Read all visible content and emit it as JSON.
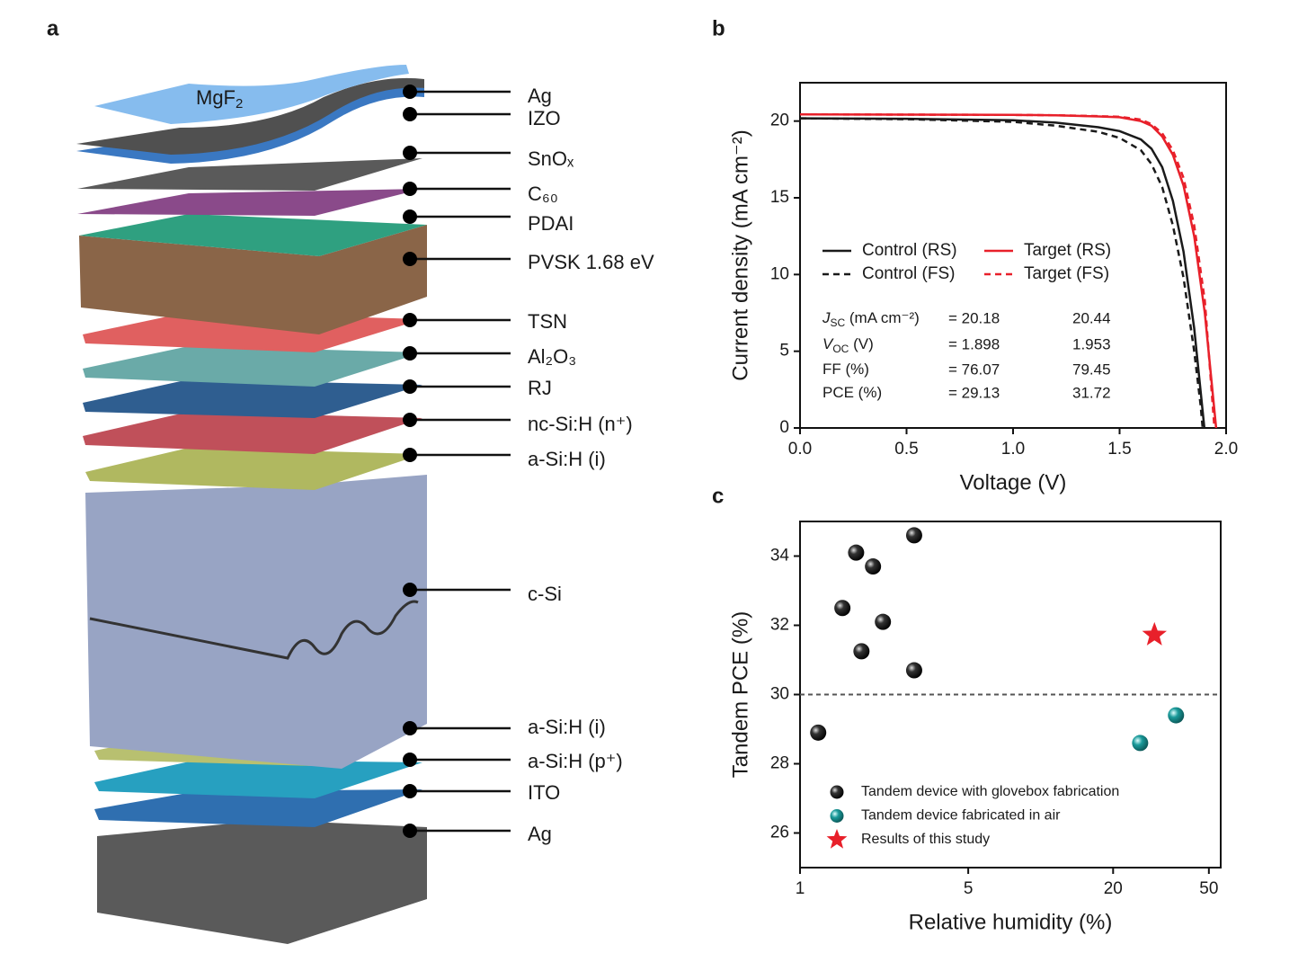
{
  "panel_labels": [
    "a",
    "b",
    "c"
  ],
  "diagram": {
    "top_sheet_label": {
      "main": "MgF",
      "sub": "2"
    },
    "layers": [
      {
        "label": "Ag"
      },
      {
        "label": "IZO"
      },
      {
        "label": "SnOₓ"
      },
      {
        "label": "C₆₀"
      },
      {
        "label": "PDAI"
      },
      {
        "label": "PVSK 1.68 eV"
      },
      {
        "label": "TSN",
        "color": "#e8202a"
      },
      {
        "label": "Al₂O₃"
      },
      {
        "label": "RJ"
      },
      {
        "label": "nc-Si:H (n⁺)"
      },
      {
        "label": "a-Si:H (i)"
      },
      {
        "label": "c-Si"
      },
      {
        "label": "a-Si:H (i)"
      },
      {
        "label": "a-Si:H (p⁺)"
      },
      {
        "label": "ITO"
      },
      {
        "label": "Ag"
      }
    ]
  },
  "chart_data": [
    {
      "type": "line",
      "xlabel": "Voltage (V)",
      "ylabel": "Current density (mA cm⁻²)",
      "xlim": [
        0,
        2
      ],
      "ylim": [
        0,
        22.5
      ],
      "xticks": [
        {
          "value": 0,
          "label": "0.0"
        },
        0.5,
        {
          "value": 1,
          "label": "1.0"
        },
        1.5,
        {
          "value": 2,
          "label": "2.0"
        }
      ],
      "yticks": [
        0,
        5,
        10,
        15,
        20
      ],
      "series": [
        {
          "name": "Control (RS)",
          "color": "#1a1a1a",
          "dash": false,
          "x": [
            0,
            0.5,
            1.0,
            1.2,
            1.4,
            1.5,
            1.6,
            1.65,
            1.7,
            1.75,
            1.8,
            1.85,
            1.898
          ],
          "values": [
            20.18,
            20.15,
            20.05,
            19.9,
            19.6,
            19.35,
            18.8,
            18.2,
            17.0,
            14.8,
            11.5,
            6.5,
            0
          ]
        },
        {
          "name": "Target (RS)",
          "color": "#e8202a",
          "dash": false,
          "x": [
            0,
            0.5,
            1.0,
            1.2,
            1.4,
            1.5,
            1.6,
            1.65,
            1.7,
            1.75,
            1.8,
            1.85,
            1.9,
            1.953
          ],
          "values": [
            20.44,
            20.42,
            20.4,
            20.38,
            20.3,
            20.25,
            20.0,
            19.7,
            19.0,
            17.8,
            15.8,
            12.5,
            7.5,
            0
          ]
        },
        {
          "name": "Control (FS)",
          "color": "#1a1a1a",
          "dash": true,
          "x": [
            0,
            0.5,
            1.0,
            1.2,
            1.4,
            1.5,
            1.6,
            1.65,
            1.7,
            1.75,
            1.8,
            1.85,
            1.88,
            1.89
          ],
          "values": [
            20.18,
            20.12,
            19.95,
            19.7,
            19.3,
            18.9,
            18.1,
            17.2,
            15.7,
            13.2,
            9.8,
            5.0,
            1.5,
            0
          ]
        },
        {
          "name": "Target (FS)",
          "color": "#e8202a",
          "dash": true,
          "x": [
            0,
            0.5,
            1.0,
            1.2,
            1.4,
            1.5,
            1.6,
            1.65,
            1.7,
            1.75,
            1.8,
            1.85,
            1.9,
            1.945
          ],
          "values": [
            20.44,
            20.42,
            20.4,
            20.38,
            20.32,
            20.28,
            20.1,
            19.8,
            19.2,
            18.1,
            16.3,
            13.2,
            8.3,
            0
          ]
        }
      ],
      "table": {
        "target_color": "#e8202a",
        "rows": [
          {
            "label": {
              "main": "J",
              "sub": "SC",
              "rest": " (mA cm⁻²)"
            },
            "control": {
              "value": 20.18,
              "label": "= 20.18"
            },
            "target": 20.44
          },
          {
            "label": {
              "main": "V",
              "sub": "OC",
              "rest": " (V)"
            },
            "control": {
              "value": 1.898,
              "label": "= 1.898"
            },
            "target": 1.953
          },
          {
            "label": {
              "main": "FF (%)"
            },
            "control": {
              "value": 76.07,
              "label": "= 76.07"
            },
            "target": 79.45
          },
          {
            "label": {
              "main": "PCE (%)"
            },
            "control": {
              "value": 29.13,
              "label": "= 29.13"
            },
            "target": 31.72
          }
        ]
      }
    },
    {
      "type": "scatter",
      "xlabel": "Relative humidity (%)",
      "ylabel": "Tandem PCE (%)",
      "xscale": "log",
      "xlim": [
        1,
        56
      ],
      "ylim": [
        25,
        35
      ],
      "xticks": [
        1,
        5,
        20,
        50
      ],
      "yticks": [
        26,
        28,
        30,
        32,
        34
      ],
      "reference_line": 30,
      "series": [
        {
          "name": "Tandem device with glovebox fabrication",
          "color": "#111111",
          "marker": "sphere",
          "x": [
            1.19,
            1.71,
            2.01,
            1.5,
            1.8,
            2.21,
            2.98,
            2.98
          ],
          "values": [
            28.9,
            34.1,
            33.7,
            32.5,
            31.25,
            32.1,
            34.6,
            30.7
          ]
        },
        {
          "name": "Tandem device fabricated in air",
          "color": "#1a9a9a",
          "marker": "sphere",
          "x": [
            25.9,
            36.5
          ],
          "values": [
            28.6,
            29.4
          ]
        },
        {
          "name": "Results of this study",
          "color": "#e8202a",
          "marker": "star",
          "x": [
            29.7
          ],
          "values": [
            31.72
          ]
        }
      ]
    }
  ]
}
